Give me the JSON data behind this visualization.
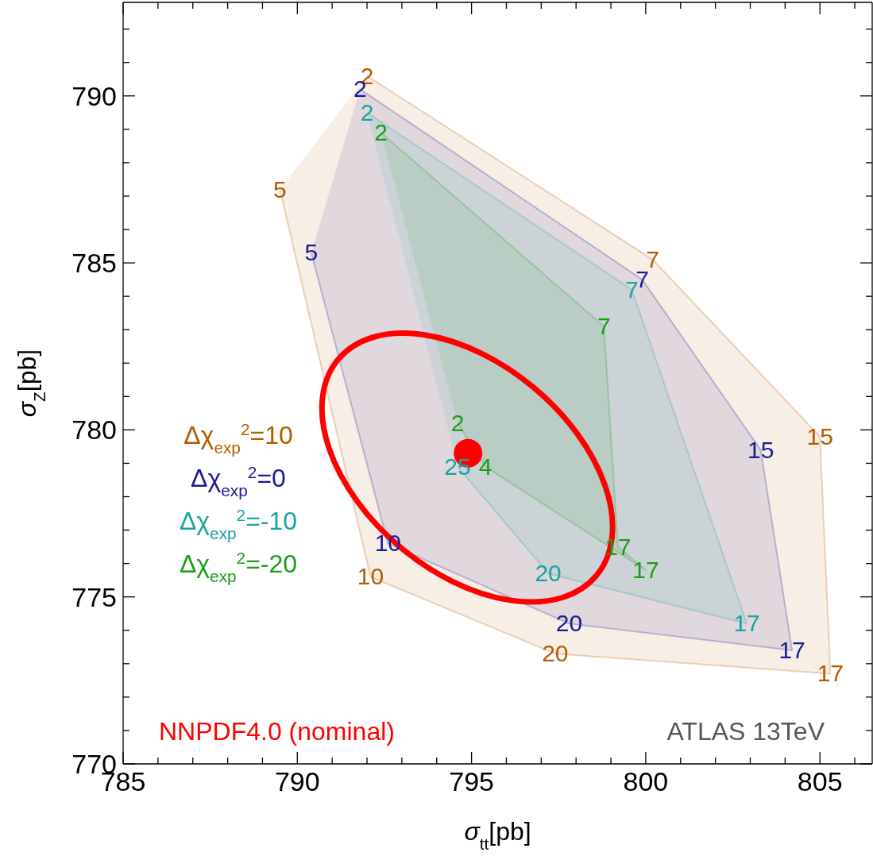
{
  "chart_data": {
    "type": "area",
    "xlabel": "σ$_{tt}$[pb]",
    "ylabel": "σ$_{Z}$[pb]",
    "xlim": [
      785,
      806.5
    ],
    "ylim": [
      770,
      792.8
    ],
    "xticks": [
      785,
      {
        "value": 786,
        "label": null
      },
      {
        "value": 787,
        "label": null
      },
      {
        "value": 788,
        "label": null
      },
      {
        "value": 789,
        "label": null
      },
      790,
      {
        "value": 791,
        "label": null
      },
      {
        "value": 792,
        "label": null
      },
      {
        "value": 793,
        "label": null
      },
      {
        "value": 794,
        "label": null
      },
      795,
      {
        "value": 796,
        "label": null
      },
      {
        "value": 797,
        "label": null
      },
      {
        "value": 798,
        "label": null
      },
      {
        "value": 799,
        "label": null
      },
      800,
      {
        "value": 801,
        "label": null
      },
      {
        "value": 802,
        "label": null
      },
      {
        "value": 803,
        "label": null
      },
      {
        "value": 804,
        "label": null
      },
      805,
      {
        "value": 806,
        "label": null
      }
    ],
    "yticks": [
      770,
      {
        "value": 771,
        "label": null
      },
      {
        "value": 772,
        "label": null
      },
      {
        "value": 773,
        "label": null
      },
      {
        "value": 774,
        "label": null
      },
      775,
      {
        "value": 776,
        "label": null
      },
      {
        "value": 777,
        "label": null
      },
      {
        "value": 778,
        "label": null
      },
      {
        "value": 779,
        "label": null
      },
      780,
      {
        "value": 781,
        "label": null
      },
      {
        "value": 782,
        "label": null
      },
      {
        "value": 783,
        "label": null
      },
      {
        "value": 784,
        "label": null
      },
      785,
      {
        "value": 786,
        "label": null
      },
      {
        "value": 787,
        "label": null
      },
      {
        "value": 788,
        "label": null
      },
      {
        "value": 789,
        "label": null
      },
      790,
      {
        "value": 791,
        "label": null
      },
      {
        "value": 792,
        "label": null
      }
    ],
    "legend": "left",
    "grid": false,
    "marker": "none",
    "annotations": [
      "ATLAS 13TeV",
      {
        "text": "2",
        "x": 792.0,
        "y": 790.6
      },
      {
        "text": "7",
        "x": 800.2,
        "y": 785.1
      },
      {
        "text": "15",
        "x": 805.0,
        "y": 779.8
      },
      {
        "text": "17",
        "x": 805.3,
        "y": 772.7
      },
      {
        "text": "20",
        "x": 797.4,
        "y": 773.3
      },
      {
        "text": "10",
        "x": 792.1,
        "y": 775.6
      },
      {
        "text": "5",
        "x": 789.5,
        "y": 787.2
      },
      {
        "text": "2",
        "x": 791.8,
        "y": 790.2
      },
      {
        "text": "7",
        "x": 799.9,
        "y": 784.5
      },
      {
        "text": "15",
        "x": 803.3,
        "y": 779.4
      },
      {
        "text": "17",
        "x": 804.2,
        "y": 773.4
      },
      {
        "text": "20",
        "x": 797.8,
        "y": 774.2
      },
      {
        "text": "10",
        "x": 792.6,
        "y": 776.6
      },
      {
        "text": "5",
        "x": 790.4,
        "y": 785.3
      },
      {
        "text": "2",
        "x": 792.0,
        "y": 789.5
      },
      {
        "text": "7",
        "x": 799.6,
        "y": 784.2
      },
      {
        "text": "17",
        "x": 802.9,
        "y": 774.2
      },
      {
        "text": "20",
        "x": 797.2,
        "y": 775.7
      },
      {
        "text": "25",
        "x": 794.6,
        "y": 778.9
      },
      {
        "text": "2",
        "x": 792.4,
        "y": 788.9
      },
      {
        "text": "7",
        "x": 798.8,
        "y": 783.1
      },
      {
        "text": "17",
        "x": 799.2,
        "y": 776.5
      },
      {
        "text": "17",
        "x": 800.0,
        "y": 775.8
      },
      {
        "text": "4",
        "x": 795.4,
        "y": 778.9
      },
      {
        "text": "2",
        "x": 794.6,
        "y": 780.2
      }
    ],
    "series": [
      {
        "name": "Δχ$_{exp}$$^{2}$=10",
        "color": "#b35c00",
        "x": [
          792.0,
          800.2,
          805.0,
          805.3,
          797.4,
          792.1,
          789.5
        ],
        "values": [
          790.6,
          785.1,
          779.8,
          772.7,
          773.3,
          775.6,
          787.2
        ]
      },
      {
        "name": "Δχ$_{exp}$$^{2}$=0",
        "color": "#1a1a99",
        "x": [
          791.8,
          799.9,
          803.3,
          804.2,
          797.8,
          792.6,
          790.4
        ],
        "values": [
          790.2,
          784.5,
          779.4,
          773.4,
          774.2,
          776.6,
          785.3
        ]
      },
      {
        "name": "Δχ$_{exp}$$^{2}$=-10",
        "color": "#1aa3a3",
        "x": [
          792.0,
          799.6,
          802.9,
          797.2,
          794.6
        ],
        "values": [
          789.5,
          784.2,
          774.2,
          775.7,
          778.9
        ]
      },
      {
        "name": "Δχ$_{exp}$$^{2}$=-20",
        "color": "#1a9e1a",
        "x": [
          792.4,
          798.8,
          799.2,
          800.0,
          795.4,
          794.6
        ],
        "values": [
          788.9,
          783.1,
          776.5,
          775.8,
          778.9,
          780.2
        ]
      },
      {
        "type": "scatter",
        "name": "NNPDF4.0 (nominal)",
        "color": "#ff0000",
        "marker": "circle",
        "x": [
          794.9
        ],
        "values": [
          779.3
        ]
      }
    ]
  }
}
